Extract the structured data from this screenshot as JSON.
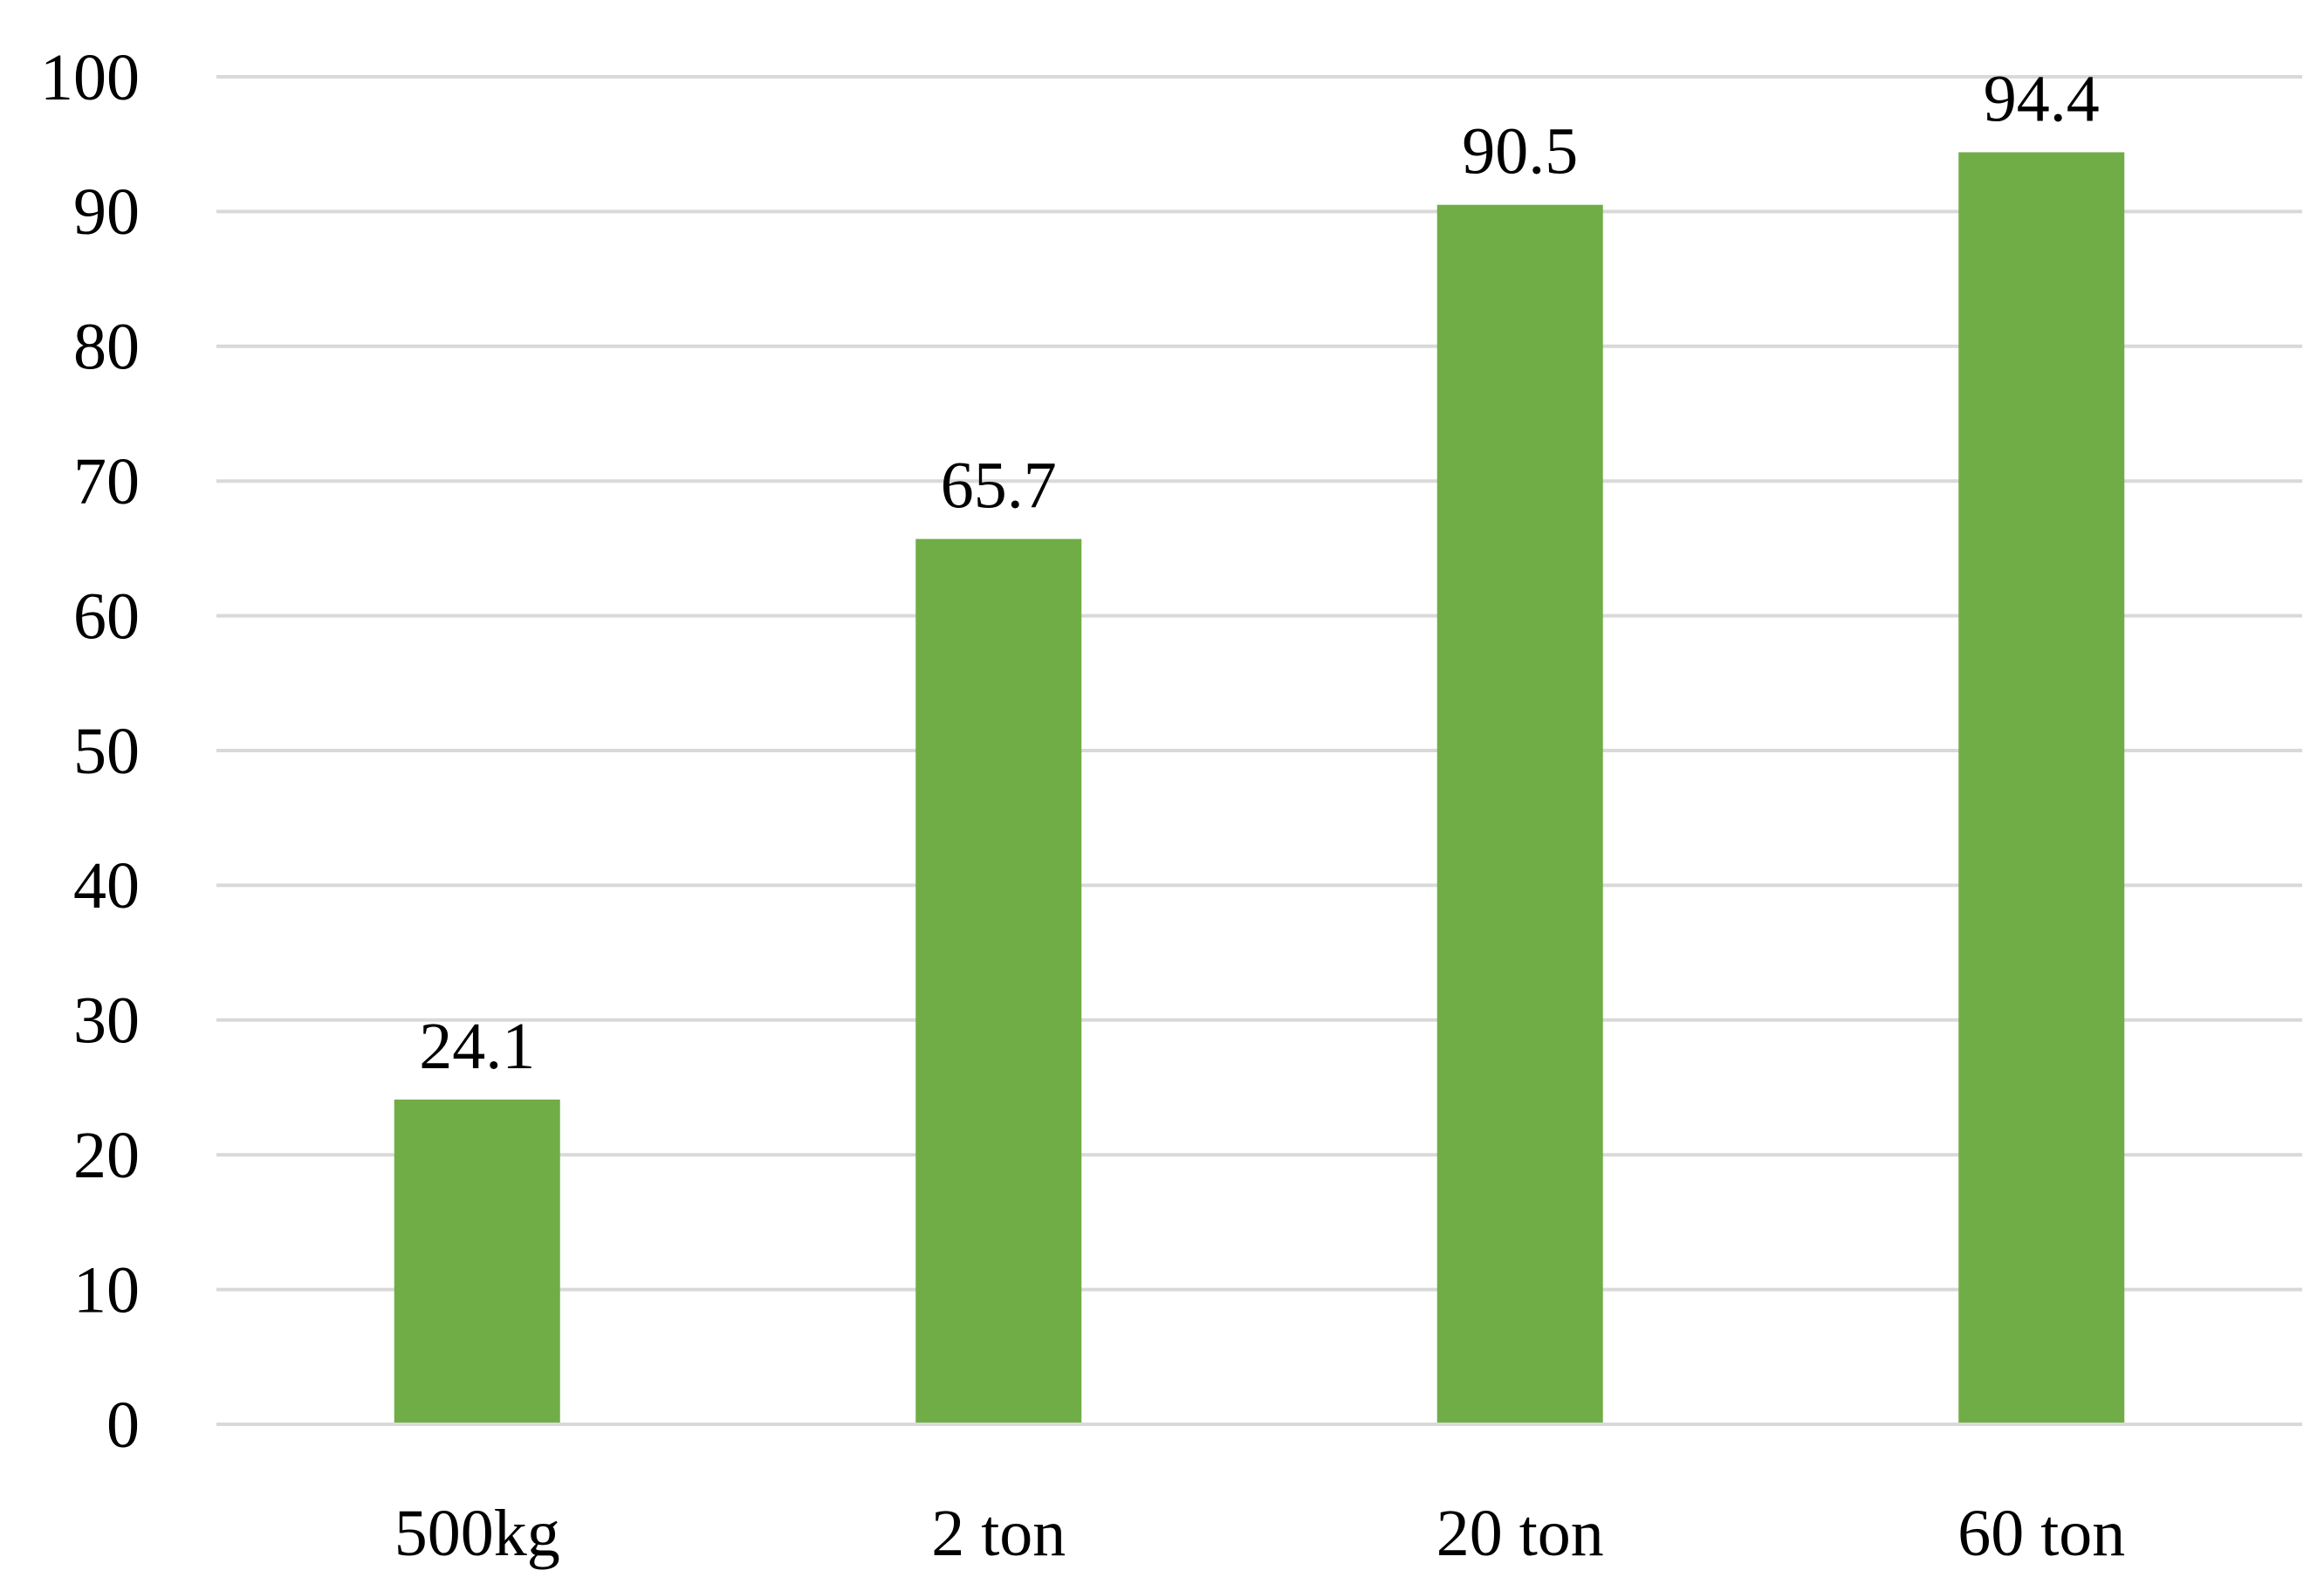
{
  "chart_data": {
    "type": "bar",
    "categories": [
      "500kg",
      "2 ton",
      "20 ton",
      "60 ton"
    ],
    "values": [
      24.1,
      65.7,
      90.5,
      94.4
    ],
    "data_labels": [
      "24.1",
      "65.7",
      "90.5",
      "94.4"
    ],
    "y_ticks": [
      "0",
      "10",
      "20",
      "30",
      "40",
      "50",
      "60",
      "70",
      "80",
      "90",
      "100"
    ],
    "ylim": [
      0,
      100
    ],
    "grid": true,
    "legend": "none",
    "bar_color": "#70AD47",
    "grid_color": "#D9D9D9",
    "axis_color": "#D9D9D9",
    "text_color": "#000000"
  }
}
